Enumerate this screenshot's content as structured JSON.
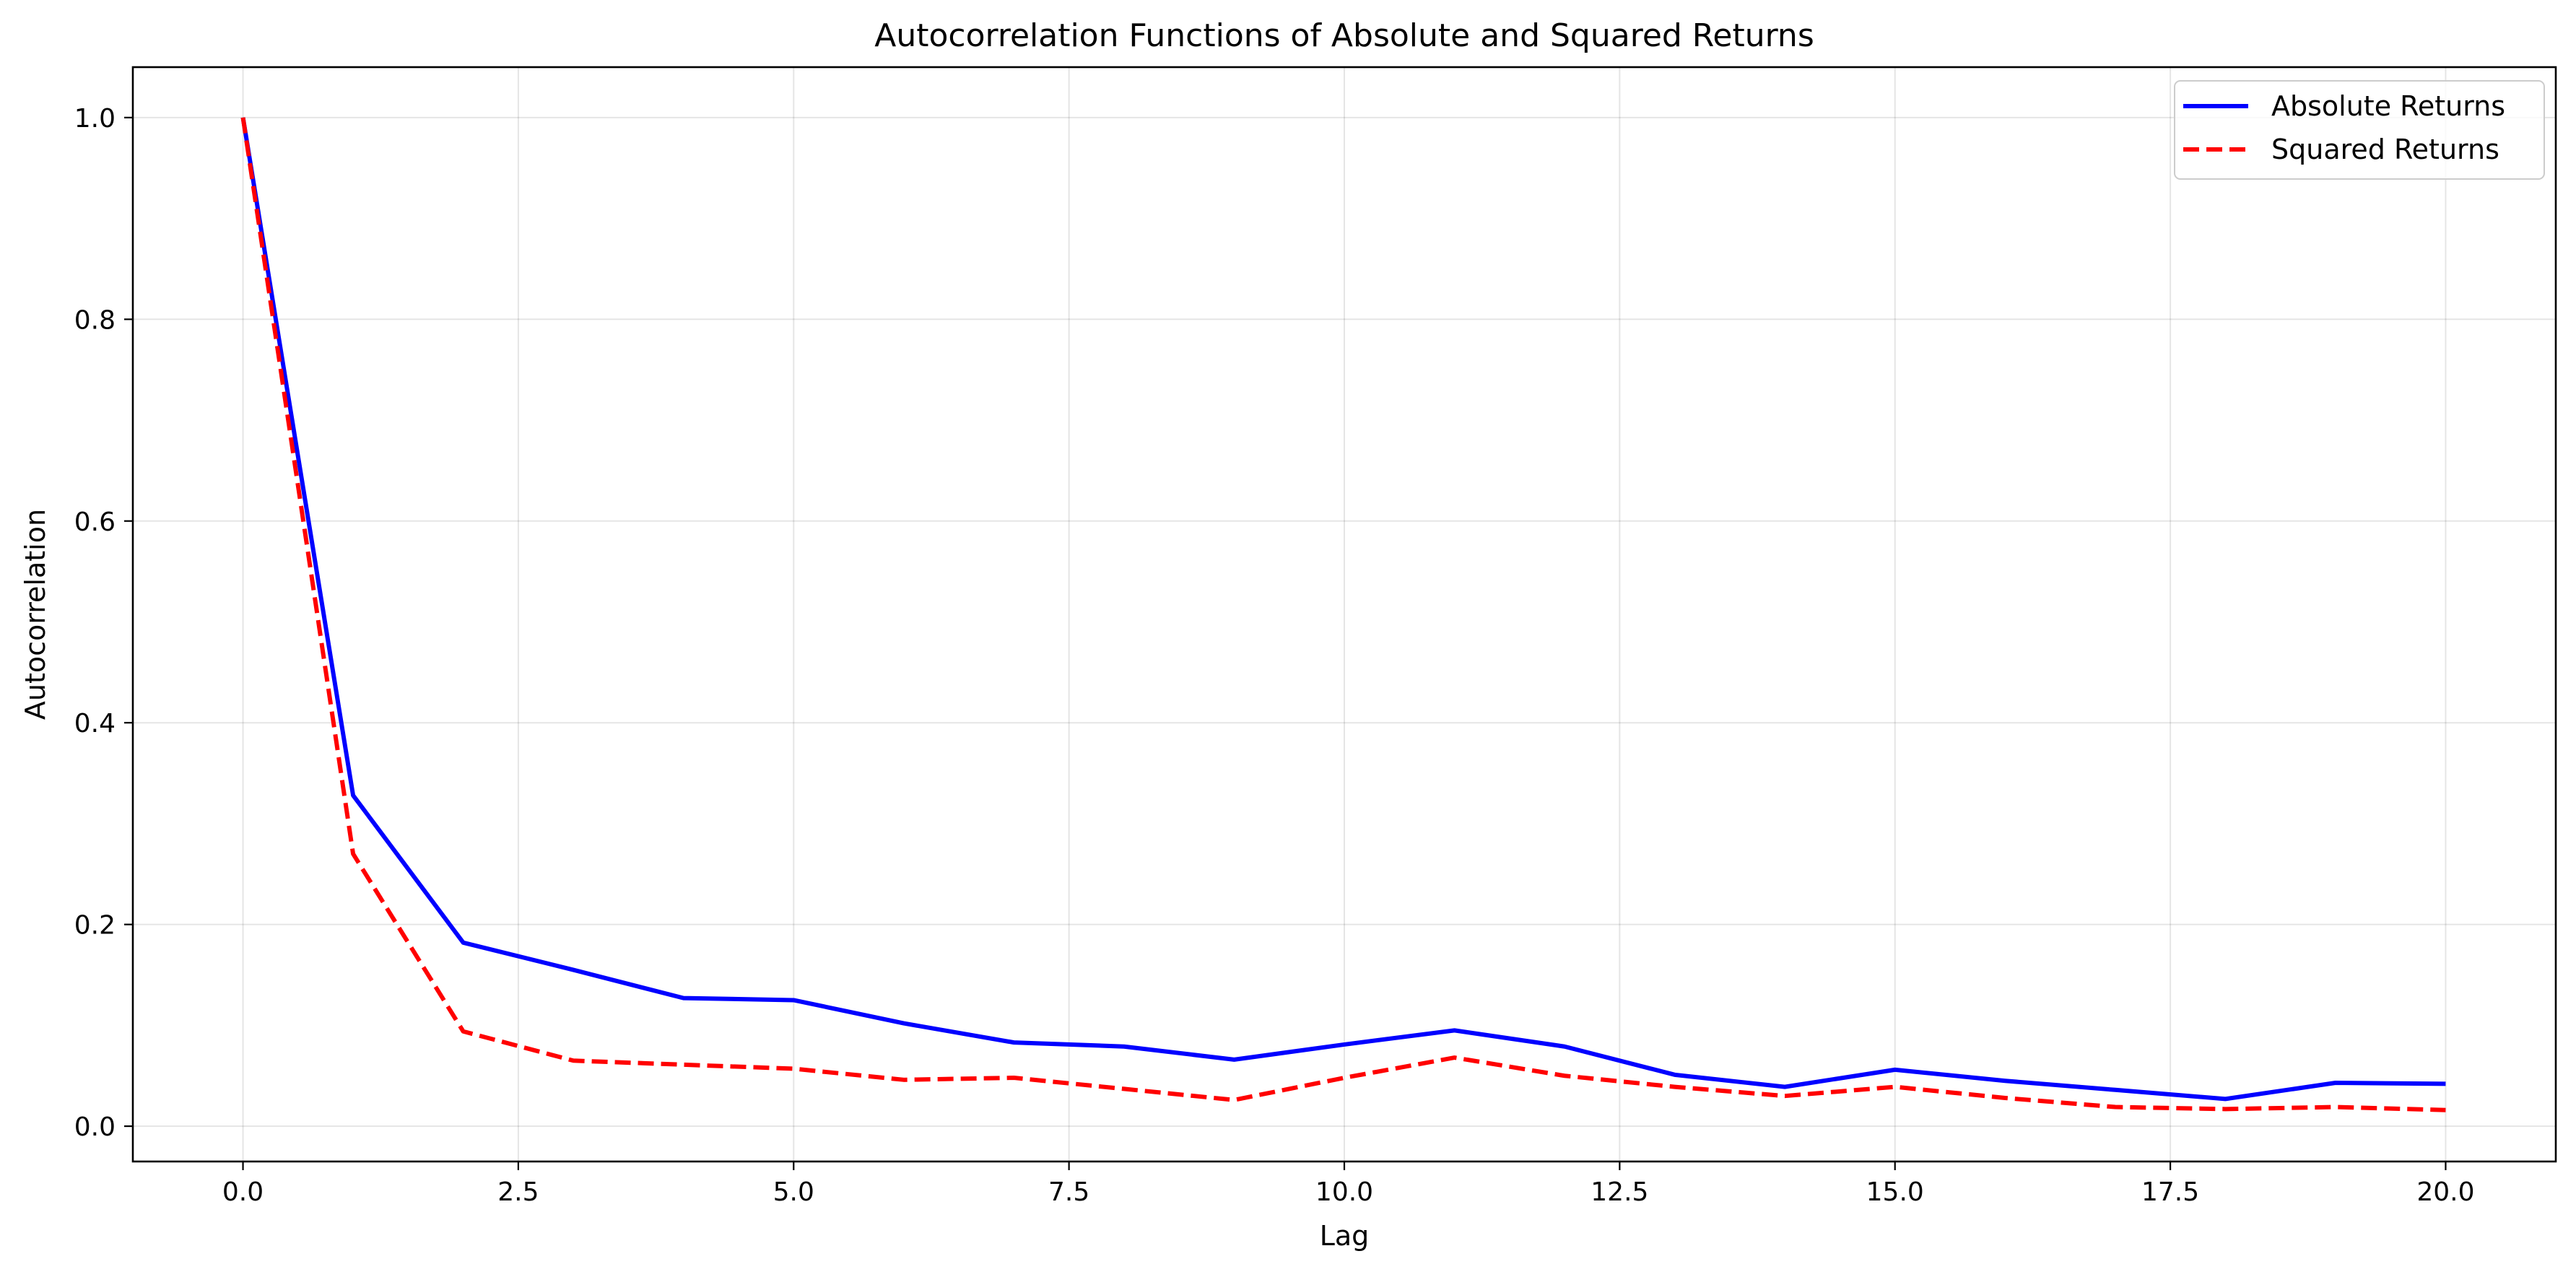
{
  "chart_data": {
    "type": "line",
    "title": "Autocorrelation Functions of Absolute and Squared Returns",
    "xlabel": "Lag",
    "ylabel": "Autocorrelation",
    "xlim": [
      -1,
      21
    ],
    "ylim": [
      -0.035,
      1.05
    ],
    "xticks": [
      0.0,
      2.5,
      5.0,
      7.5,
      10.0,
      12.5,
      15.0,
      17.5,
      20.0
    ],
    "xtick_labels": [
      "0.0",
      "2.5",
      "5.0",
      "7.5",
      "10.0",
      "12.5",
      "15.0",
      "17.5",
      "20.0"
    ],
    "yticks": [
      0.0,
      0.2,
      0.4,
      0.6,
      0.8,
      1.0
    ],
    "ytick_labels": [
      "0.0",
      "0.2",
      "0.4",
      "0.6",
      "0.8",
      "1.0"
    ],
    "grid": true,
    "legend_position": "top-right",
    "x": [
      0,
      1,
      2,
      3,
      4,
      5,
      6,
      7,
      8,
      9,
      10,
      11,
      12,
      13,
      14,
      15,
      16,
      17,
      18,
      19,
      20
    ],
    "series": [
      {
        "name": "Absolute Returns",
        "color": "#0000ff",
        "style": "solid",
        "values": [
          1.0,
          0.328,
          0.182,
          0.155,
          0.127,
          0.125,
          0.102,
          0.083,
          0.079,
          0.066,
          0.081,
          0.095,
          0.079,
          0.051,
          0.039,
          0.056,
          0.045,
          0.036,
          0.027,
          0.043,
          0.042
        ]
      },
      {
        "name": "Squared Returns",
        "color": "#ff0000",
        "style": "dashed",
        "values": [
          1.0,
          0.27,
          0.094,
          0.065,
          0.061,
          0.057,
          0.046,
          0.048,
          0.037,
          0.026,
          0.048,
          0.068,
          0.05,
          0.039,
          0.03,
          0.039,
          0.028,
          0.019,
          0.017,
          0.019,
          0.016
        ]
      }
    ]
  }
}
